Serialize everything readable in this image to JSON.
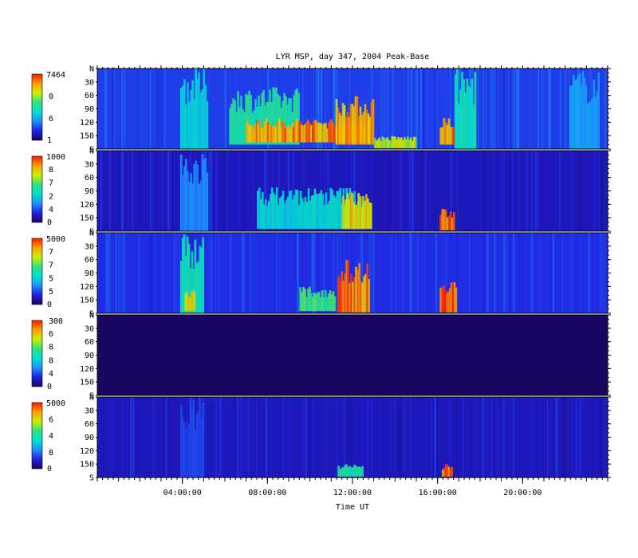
{
  "chart_data": {
    "type": "heatmap",
    "title": "LYR MSP, day 347, 2004 Peak-Base",
    "xlabel": "Time UT",
    "x_unit": "hours UT",
    "xlim": [
      0,
      24
    ],
    "x_ticks": [
      {
        "value": 4,
        "label": "04:00:00"
      },
      {
        "value": 8,
        "label": "08:00:00"
      },
      {
        "value": 12,
        "label": "12:00:00"
      },
      {
        "value": 16,
        "label": "16:00:00"
      },
      {
        "value": 20,
        "label": "20:00:00"
      }
    ],
    "y_ticks": [
      "N",
      "30",
      "60",
      "90",
      "120",
      "150",
      "S"
    ],
    "colormap": [
      "#1a0560",
      "#2020e0",
      "#1e90ff",
      "#00e0d0",
      "#30e080",
      "#c8f000",
      "#ffa000",
      "#ff1a00"
    ],
    "panels": [
      {
        "colorbar_max": "7464",
        "colorbar_mid": [
          "0",
          "6"
        ],
        "colorbar_min": "1",
        "background": 0.18,
        "features": [
          {
            "x0": 3.9,
            "x1": 5.2,
            "y0": 0,
            "y1": 180,
            "level": 0.42
          },
          {
            "x0": 6.2,
            "x1": 9.5,
            "y0": 40,
            "y1": 170,
            "level": 0.55
          },
          {
            "x0": 7.0,
            "x1": 12.8,
            "y0": 110,
            "y1": 165,
            "level": 0.95
          },
          {
            "x0": 11.2,
            "x1": 13.0,
            "y0": 60,
            "y1": 170,
            "level": 0.9
          },
          {
            "x0": 13.0,
            "x1": 15.0,
            "y0": 150,
            "y1": 178,
            "level": 0.75
          },
          {
            "x0": 16.1,
            "x1": 16.8,
            "y0": 110,
            "y1": 170,
            "level": 0.95
          },
          {
            "x0": 16.8,
            "x1": 17.8,
            "y0": 0,
            "y1": 180,
            "level": 0.5
          },
          {
            "x0": 22.2,
            "x1": 23.6,
            "y0": 0,
            "y1": 180,
            "level": 0.33
          }
        ]
      },
      {
        "colorbar_max": "1000",
        "colorbar_mid": [
          "8",
          "7",
          "2",
          "4"
        ],
        "colorbar_min": "0",
        "background": 0.1,
        "features": [
          {
            "x0": 3.9,
            "x1": 5.2,
            "y0": 0,
            "y1": 180,
            "level": 0.3
          },
          {
            "x0": 7.5,
            "x1": 12.5,
            "y0": 80,
            "y1": 175,
            "level": 0.45
          },
          {
            "x0": 11.5,
            "x1": 12.9,
            "y0": 90,
            "y1": 175,
            "level": 0.85
          },
          {
            "x0": 16.1,
            "x1": 16.8,
            "y0": 130,
            "y1": 178,
            "level": 0.95
          }
        ]
      },
      {
        "colorbar_max": "5000",
        "colorbar_mid": [
          "7",
          "7",
          "5",
          "5"
        ],
        "colorbar_min": "0",
        "background": 0.16,
        "features": [
          {
            "x0": 3.9,
            "x1": 5.0,
            "y0": 0,
            "y1": 180,
            "level": 0.5
          },
          {
            "x0": 4.1,
            "x1": 4.6,
            "y0": 120,
            "y1": 175,
            "level": 0.8
          },
          {
            "x0": 9.5,
            "x1": 11.2,
            "y0": 120,
            "y1": 175,
            "level": 0.6
          },
          {
            "x0": 11.3,
            "x1": 12.8,
            "y0": 60,
            "y1": 178,
            "level": 0.95
          },
          {
            "x0": 16.1,
            "x1": 16.9,
            "y0": 100,
            "y1": 178,
            "level": 0.98
          }
        ]
      },
      {
        "colorbar_max": "300",
        "colorbar_mid": [
          "6",
          "8",
          "8",
          "4"
        ],
        "colorbar_min": "0",
        "background": 0.0,
        "features": []
      },
      {
        "colorbar_max": "5000",
        "colorbar_mid": [
          "6",
          "4",
          "8"
        ],
        "colorbar_min": "0",
        "background": 0.1,
        "features": [
          {
            "x0": 3.9,
            "x1": 5.0,
            "y0": 0,
            "y1": 180,
            "level": 0.2
          },
          {
            "x0": 11.3,
            "x1": 12.5,
            "y0": 150,
            "y1": 178,
            "level": 0.55
          },
          {
            "x0": 16.2,
            "x1": 16.7,
            "y0": 150,
            "y1": 178,
            "level": 0.95
          }
        ]
      }
    ]
  }
}
